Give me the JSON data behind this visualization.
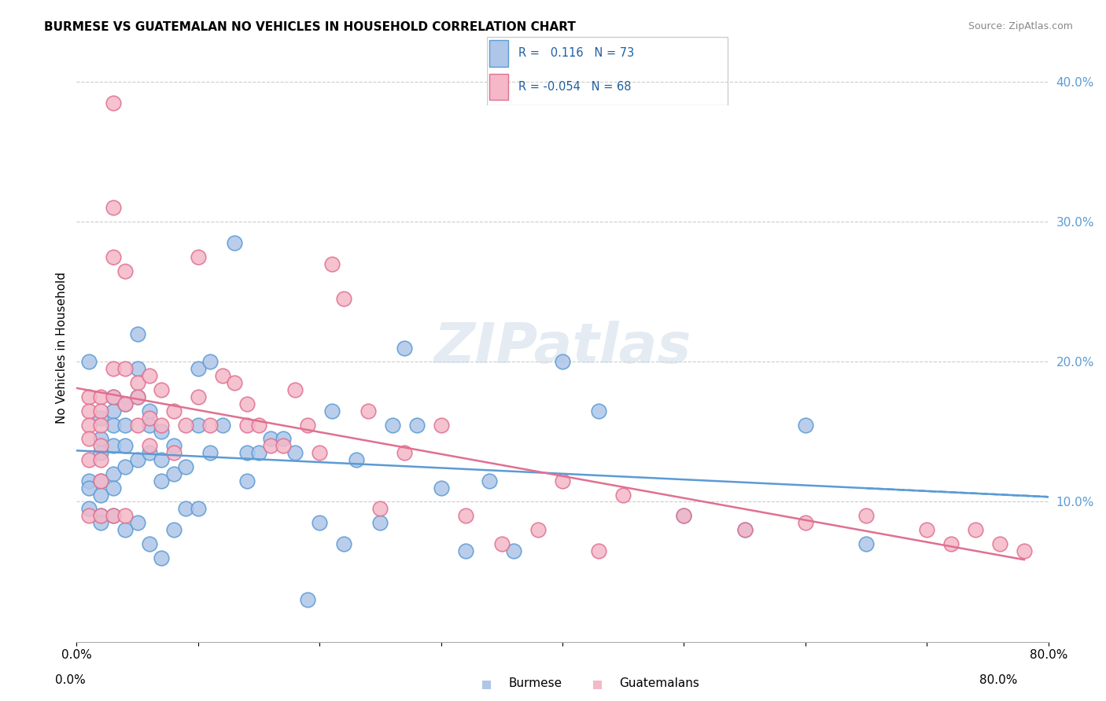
{
  "title": "BURMESE VS GUATEMALAN NO VEHICLES IN HOUSEHOLD CORRELATION CHART",
  "source": "Source: ZipAtlas.com",
  "ylabel": "No Vehicles in Household",
  "xlabel": "",
  "xlim": [
    0.0,
    0.8
  ],
  "ylim": [
    0.0,
    0.42
  ],
  "xticks": [
    0.0,
    0.1,
    0.2,
    0.3,
    0.4,
    0.5,
    0.6,
    0.7,
    0.8
  ],
  "xticklabels": [
    "0.0%",
    "",
    "",
    "",
    "",
    "",
    "",
    "",
    "80.0%"
  ],
  "yticks_right": [
    0.1,
    0.2,
    0.3,
    0.4
  ],
  "ytick_labels_right": [
    "10.0%",
    "20.0%",
    "30.0%",
    "40.0%"
  ],
  "burmese_R": "0.116",
  "burmese_N": "73",
  "guatemalan_R": "-0.054",
  "guatemalan_N": "68",
  "burmese_color": "#aec6e8",
  "burmese_edge": "#5b9bd5",
  "guatemalan_color": "#f4b8c8",
  "guatemalan_edge": "#e07090",
  "trend_burmese_color": "#5b9bd5",
  "trend_guatemalan_color": "#e07090",
  "watermark": "ZIPatlas",
  "burmese_x": [
    0.01,
    0.01,
    0.01,
    0.01,
    0.02,
    0.02,
    0.02,
    0.02,
    0.02,
    0.02,
    0.02,
    0.03,
    0.03,
    0.03,
    0.03,
    0.03,
    0.03,
    0.03,
    0.04,
    0.04,
    0.04,
    0.04,
    0.04,
    0.05,
    0.05,
    0.05,
    0.05,
    0.05,
    0.06,
    0.06,
    0.06,
    0.06,
    0.07,
    0.07,
    0.07,
    0.07,
    0.08,
    0.08,
    0.08,
    0.09,
    0.09,
    0.1,
    0.1,
    0.1,
    0.11,
    0.11,
    0.12,
    0.13,
    0.14,
    0.14,
    0.15,
    0.16,
    0.17,
    0.18,
    0.19,
    0.2,
    0.21,
    0.22,
    0.23,
    0.25,
    0.26,
    0.27,
    0.28,
    0.3,
    0.32,
    0.34,
    0.36,
    0.4,
    0.43,
    0.5,
    0.55,
    0.6,
    0.65
  ],
  "burmese_y": [
    0.2,
    0.115,
    0.11,
    0.095,
    0.16,
    0.145,
    0.135,
    0.115,
    0.105,
    0.09,
    0.085,
    0.175,
    0.165,
    0.155,
    0.14,
    0.12,
    0.11,
    0.09,
    0.17,
    0.155,
    0.14,
    0.125,
    0.08,
    0.22,
    0.195,
    0.175,
    0.13,
    0.085,
    0.165,
    0.155,
    0.135,
    0.07,
    0.15,
    0.13,
    0.115,
    0.06,
    0.14,
    0.12,
    0.08,
    0.125,
    0.095,
    0.195,
    0.155,
    0.095,
    0.2,
    0.135,
    0.155,
    0.285,
    0.135,
    0.115,
    0.135,
    0.145,
    0.145,
    0.135,
    0.03,
    0.085,
    0.165,
    0.07,
    0.13,
    0.085,
    0.155,
    0.21,
    0.155,
    0.11,
    0.065,
    0.115,
    0.065,
    0.2,
    0.165,
    0.09,
    0.08,
    0.155,
    0.07
  ],
  "guatemalan_x": [
    0.01,
    0.01,
    0.01,
    0.01,
    0.01,
    0.01,
    0.02,
    0.02,
    0.02,
    0.02,
    0.02,
    0.02,
    0.02,
    0.03,
    0.03,
    0.03,
    0.03,
    0.03,
    0.03,
    0.04,
    0.04,
    0.04,
    0.04,
    0.05,
    0.05,
    0.05,
    0.06,
    0.06,
    0.06,
    0.07,
    0.07,
    0.08,
    0.08,
    0.09,
    0.1,
    0.1,
    0.11,
    0.12,
    0.13,
    0.14,
    0.14,
    0.15,
    0.16,
    0.17,
    0.18,
    0.19,
    0.2,
    0.21,
    0.22,
    0.24,
    0.25,
    0.27,
    0.3,
    0.32,
    0.35,
    0.38,
    0.4,
    0.43,
    0.45,
    0.5,
    0.55,
    0.6,
    0.65,
    0.7,
    0.72,
    0.74,
    0.76,
    0.78
  ],
  "guatemalan_y": [
    0.175,
    0.165,
    0.155,
    0.145,
    0.13,
    0.09,
    0.175,
    0.165,
    0.155,
    0.14,
    0.13,
    0.115,
    0.09,
    0.385,
    0.31,
    0.275,
    0.195,
    0.175,
    0.09,
    0.265,
    0.195,
    0.17,
    0.09,
    0.185,
    0.175,
    0.155,
    0.19,
    0.16,
    0.14,
    0.18,
    0.155,
    0.165,
    0.135,
    0.155,
    0.275,
    0.175,
    0.155,
    0.19,
    0.185,
    0.17,
    0.155,
    0.155,
    0.14,
    0.14,
    0.18,
    0.155,
    0.135,
    0.27,
    0.245,
    0.165,
    0.095,
    0.135,
    0.155,
    0.09,
    0.07,
    0.08,
    0.115,
    0.065,
    0.105,
    0.09,
    0.08,
    0.085,
    0.09,
    0.08,
    0.07,
    0.08,
    0.07,
    0.065
  ]
}
